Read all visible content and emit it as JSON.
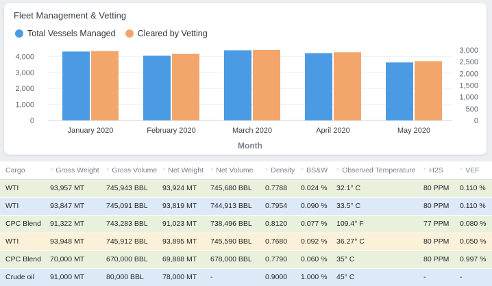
{
  "card": {
    "title": "Fleet Management & Vetting"
  },
  "colors": {
    "total": "#4a9be3",
    "cleared": "#f2a66c",
    "row_green": "#e9f1dc",
    "row_blue": "#dde9f6",
    "row_yellow": "#fbf0d8"
  },
  "chart_data": {
    "type": "bar",
    "title": "Fleet Management & Vetting",
    "xlabel": "Month",
    "categories": [
      "January 2020",
      "February 2020",
      "March 2020",
      "April 2020",
      "May 2020"
    ],
    "series": [
      {
        "name": "Total Vessels Managed",
        "axis": "left",
        "values": [
          4300,
          4040,
          4380,
          4200,
          3620
        ]
      },
      {
        "name": "Cleared by Vetting",
        "axis": "right",
        "values": [
          2950,
          2830,
          3000,
          2900,
          2520
        ]
      }
    ],
    "y_left": {
      "ticks": [
        "0",
        "1,000",
        "2,000",
        "3,000",
        "4,000"
      ],
      "lim": [
        0,
        4700
      ]
    },
    "y_right": {
      "ticks": [
        "0",
        "500",
        "1,000",
        "1,500",
        "2,000",
        "2,500",
        "3,000"
      ],
      "lim": [
        0,
        3200
      ]
    },
    "grid": true,
    "legend": "top-left"
  },
  "table": {
    "columns": [
      "Cargo",
      "Gross Weight",
      "Gross Volume",
      "Net Weight",
      "Net Volume",
      "Density",
      "BS&W",
      "Observed Temperature",
      "H2S",
      "VEF"
    ],
    "rows": [
      {
        "style": "green",
        "cells": [
          "WTI",
          "93,957 MT",
          "745,943 BBL",
          "93,924 MT",
          "745,680 BBL",
          "0.7788",
          "0.024 %",
          "32.1° C",
          "80 PPM",
          "0.110 %"
        ]
      },
      {
        "style": "blue",
        "cells": [
          "WTI",
          "93,847 MT",
          "745,091 BBL",
          "93,819 MT",
          "744,913 BBL",
          "0.7954",
          "0.090 %",
          "33.5° C",
          "80 PPM",
          "0.110 %"
        ]
      },
      {
        "style": "green",
        "cells": [
          "CPC Blend",
          "91,322 MT",
          "743,283 BBL",
          "91,023 MT",
          "738,496 BBL",
          "0.8120",
          "0.077 %",
          "109.4° F",
          "77 PPM",
          "0.080 %"
        ]
      },
      {
        "style": "yellow",
        "cells": [
          "WTI",
          "93,948 MT",
          "745,912 BBL",
          "93,895 MT",
          "745,590 BBL",
          "0.7680",
          "0.092 %",
          "36.27° C",
          "80 PPM",
          "0.050 %"
        ]
      },
      {
        "style": "green",
        "cells": [
          "CPC Blend",
          "70,000 MT",
          "670,000 BBL",
          "69,888 MT",
          "678,000 BBL",
          "0.7790",
          "0.060 %",
          "35° C",
          "80 PPM",
          "0.997 %"
        ]
      },
      {
        "style": "blue",
        "cells": [
          "Crude oil",
          "91,000 MT",
          "80,000 BBL",
          "78,000 MT",
          "-",
          "0.9000",
          "1.000 %",
          "45° C",
          "-",
          "-"
        ]
      }
    ]
  }
}
